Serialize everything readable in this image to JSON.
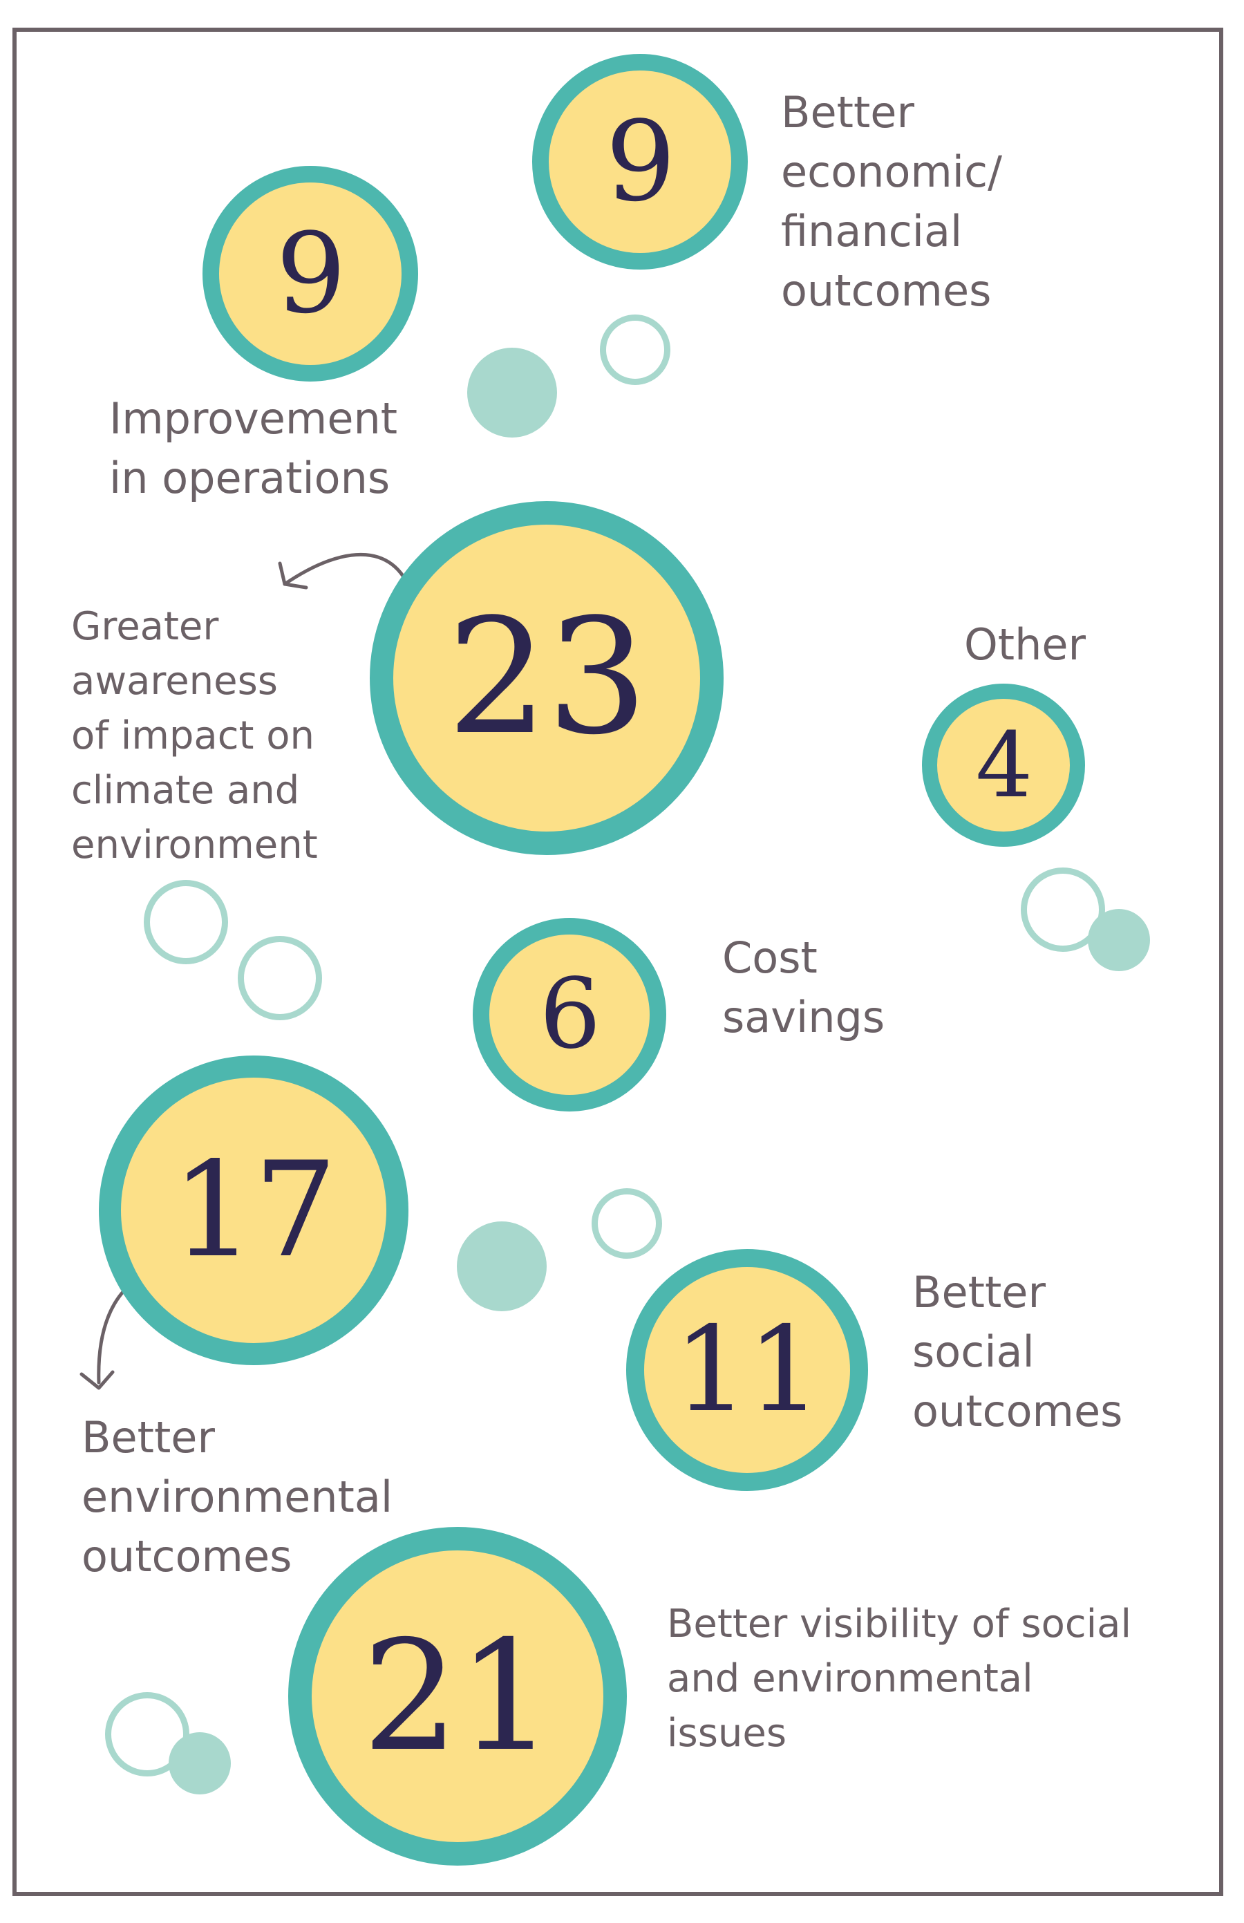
{
  "colors": {
    "bubble_fill": "#fce088",
    "bubble_ring": "#4db7ae",
    "number_text": "#2c2650",
    "label_text": "#6b6166",
    "decoration": "#a8d8cd",
    "frame": "#6b6166"
  },
  "items": {
    "economic": {
      "value": "9",
      "label": [
        "Better",
        "economic/",
        "financial",
        "outcomes"
      ]
    },
    "operations": {
      "value": "9",
      "label": [
        "Improvement",
        "in operations"
      ]
    },
    "awareness": {
      "value": "23",
      "label": [
        "Greater",
        "awareness",
        "of impact on",
        "climate and",
        "environment"
      ]
    },
    "other": {
      "value": "4",
      "label": [
        "Other"
      ]
    },
    "cost": {
      "value": "6",
      "label": [
        "Cost",
        "savings"
      ]
    },
    "environmental": {
      "value": "17",
      "label": [
        "Better",
        "environmental",
        "outcomes"
      ]
    },
    "social": {
      "value": "11",
      "label": [
        "Better",
        "social",
        "outcomes"
      ]
    },
    "visibility": {
      "value": "21",
      "label": [
        "Better visibility of social",
        "and environmental",
        "issues"
      ]
    }
  }
}
